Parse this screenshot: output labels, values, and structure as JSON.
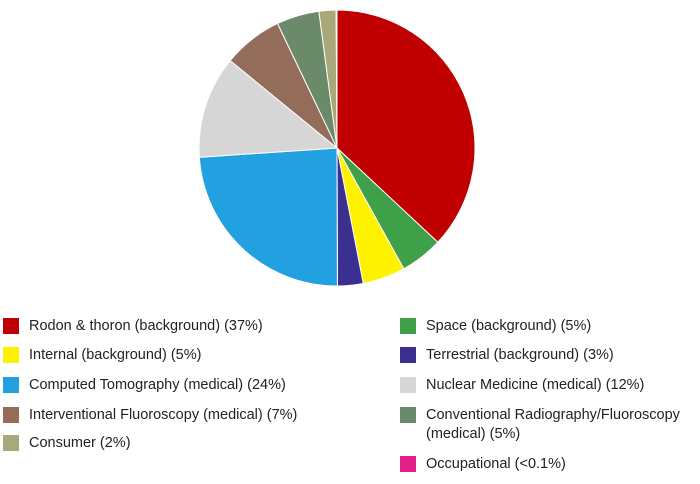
{
  "chart_data": {
    "type": "pie",
    "title": "",
    "slices": [
      {
        "label": "Rodon & thoron (background) (37%)",
        "value": 37,
        "color": "#c00000"
      },
      {
        "label": "Space (background) (5%)",
        "value": 5,
        "color": "#3fa04a"
      },
      {
        "label": "Internal (background) (5%)",
        "value": 5,
        "color": "#fff200"
      },
      {
        "label": "Terrestrial (background) (3%)",
        "value": 3,
        "color": "#3b2f8f"
      },
      {
        "label": "Computed Tomography (medical) (24%)",
        "value": 24,
        "color": "#22a0e0"
      },
      {
        "label": "Nuclear Medicine (medical) (12%)",
        "value": 12,
        "color": "#d6d6d6"
      },
      {
        "label": "Interventional Fluoroscopy (medical) (7%)",
        "value": 7,
        "color": "#936d5a"
      },
      {
        "label": "Conventional Radiography/Fluoroscopy (medical) (5%)",
        "value": 5,
        "color": "#6a8a6a"
      },
      {
        "label": "Consumer (2%)",
        "value": 2,
        "color": "#a8a87a"
      },
      {
        "label": "Occupational (<0.1%)",
        "value": 0.1,
        "color": "#e0208a"
      }
    ],
    "legend_position": "bottom"
  }
}
